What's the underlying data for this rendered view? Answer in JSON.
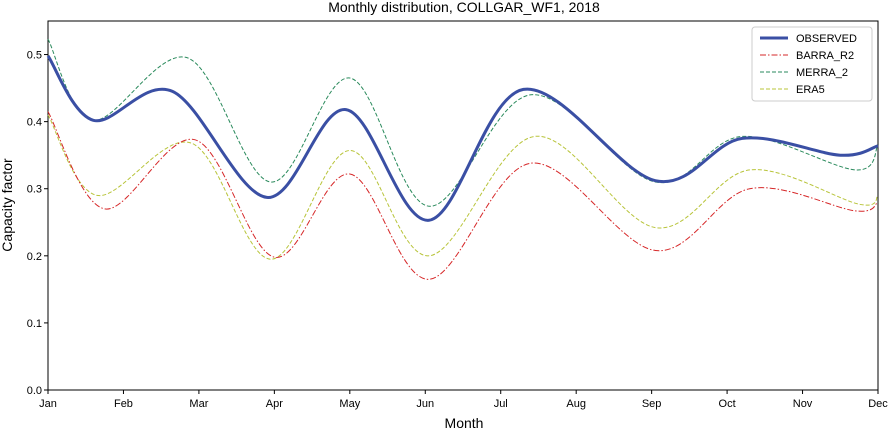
{
  "chart_data": {
    "type": "line",
    "title": "Monthly distribution, COLLGAR_WF1, 2018",
    "xlabel": "Month",
    "ylabel": "Capacity factor",
    "x_ticks": [
      "Jan",
      "Feb",
      "Mar",
      "Apr",
      "May",
      "Jun",
      "Jul",
      "Aug",
      "Sep",
      "Oct",
      "Nov",
      "Dec"
    ],
    "y_ticks": [
      "0.0",
      "0.1",
      "0.2",
      "0.3",
      "0.4",
      "0.5"
    ],
    "xlim": [
      1,
      12
    ],
    "ylim": [
      0,
      0.55
    ],
    "grid": false,
    "legend_position": "top-right",
    "series": [
      {
        "name": "OBSERVED",
        "color": "#3a4fa4",
        "style": "solid",
        "points": [
          [
            1,
            0.498
          ],
          [
            1.6,
            0.402
          ],
          [
            2.65,
            0.445
          ],
          [
            3.9,
            0.287
          ],
          [
            4.95,
            0.418
          ],
          [
            6.05,
            0.253
          ],
          [
            7.3,
            0.448
          ],
          [
            9.05,
            0.312
          ],
          [
            10.2,
            0.375
          ],
          [
            11.5,
            0.35
          ],
          [
            12,
            0.364
          ]
        ]
      },
      {
        "name": "BARRA_R2",
        "color": "#d62728",
        "style": "dashdot",
        "points": [
          [
            1,
            0.415
          ],
          [
            1.75,
            0.27
          ],
          [
            2.95,
            0.373
          ],
          [
            4,
            0.198
          ],
          [
            5,
            0.322
          ],
          [
            6.05,
            0.165
          ],
          [
            7.4,
            0.338
          ],
          [
            9.05,
            0.208
          ],
          [
            10.3,
            0.3
          ],
          [
            11.7,
            0.267
          ],
          [
            12,
            0.28
          ]
        ]
      },
      {
        "name": "MERRA_2",
        "color": "#2a8a5c",
        "style": "dashed",
        "points": [
          [
            1,
            0.523
          ],
          [
            1.6,
            0.402
          ],
          [
            2.85,
            0.495
          ],
          [
            3.95,
            0.31
          ],
          [
            5,
            0.465
          ],
          [
            6.05,
            0.274
          ],
          [
            7.4,
            0.44
          ],
          [
            9.05,
            0.31
          ],
          [
            10.2,
            0.378
          ],
          [
            11.7,
            0.328
          ],
          [
            12,
            0.365
          ]
        ]
      },
      {
        "name": "ERA5",
        "color": "#b8c43a",
        "style": "dashed",
        "points": [
          [
            1,
            0.41
          ],
          [
            1.65,
            0.29
          ],
          [
            2.9,
            0.368
          ],
          [
            3.95,
            0.195
          ],
          [
            5,
            0.357
          ],
          [
            6.05,
            0.2
          ],
          [
            7.45,
            0.378
          ],
          [
            9.05,
            0.242
          ],
          [
            10.3,
            0.328
          ],
          [
            11.75,
            0.277
          ],
          [
            12,
            0.29
          ]
        ]
      }
    ]
  }
}
